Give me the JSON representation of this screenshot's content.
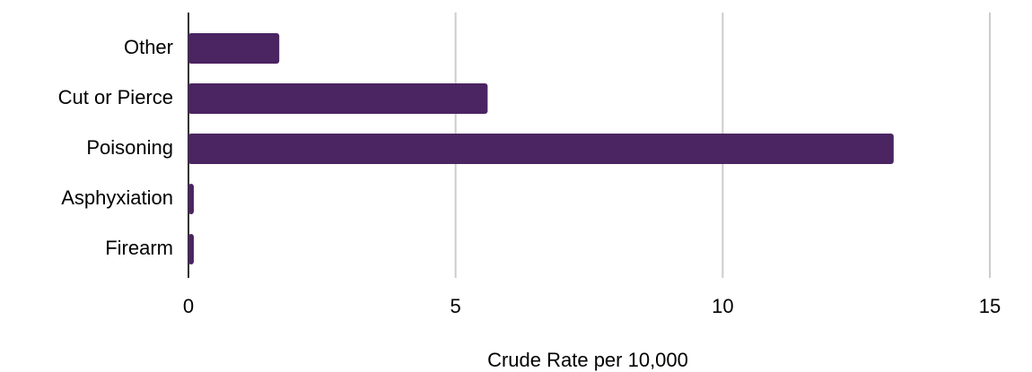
{
  "chart_data": {
    "type": "bar",
    "orientation": "horizontal",
    "categories": [
      "Other",
      "Cut or Pierce",
      "Poisoning",
      "Asphyxiation",
      "Firearm"
    ],
    "values": [
      1.7,
      5.6,
      13.2,
      0.1,
      0.1
    ],
    "color": "#4b2462",
    "x_label": "Crude Rate per 10,000",
    "xlim": [
      0,
      15
    ],
    "xticks": [
      0,
      5,
      10,
      15
    ],
    "grid": true
  }
}
